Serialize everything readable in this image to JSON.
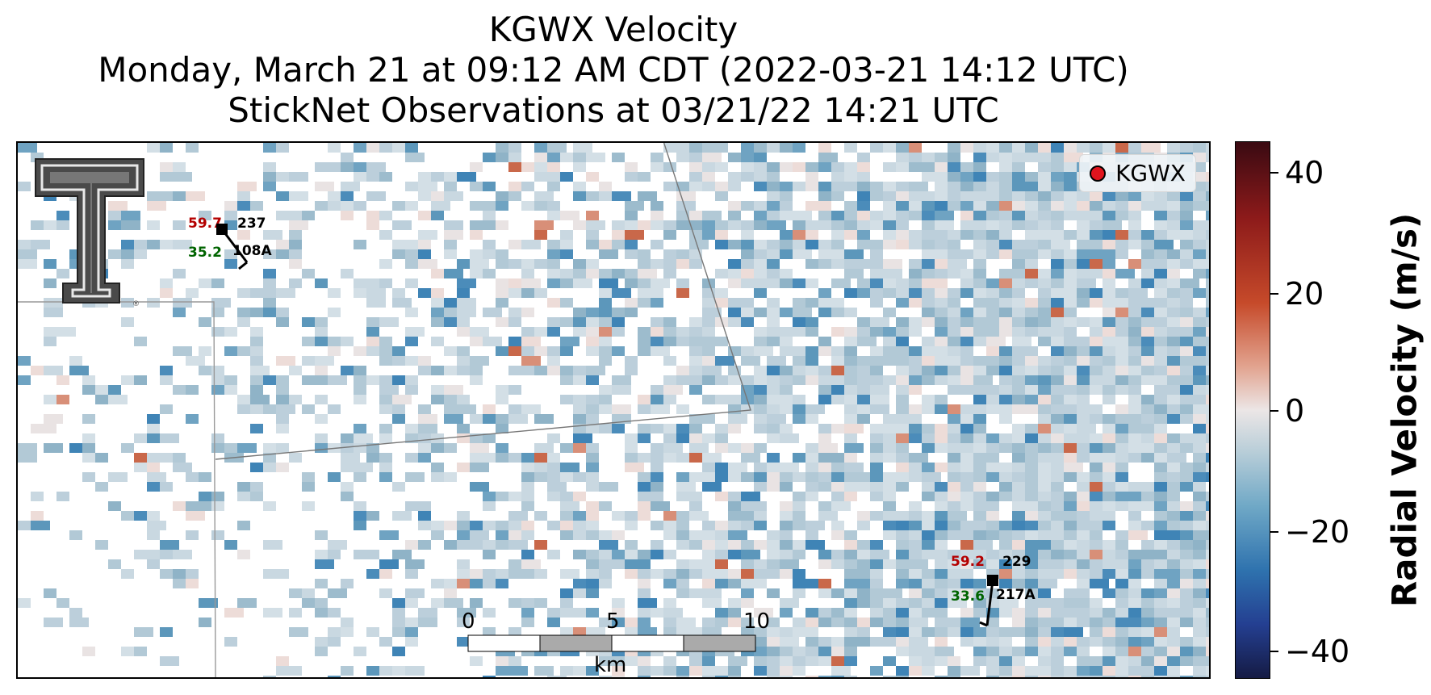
{
  "title": {
    "line1": "KGWX Velocity",
    "line2": "Monday, March 21 at 09:12 AM CDT (2022-03-21 14:12 UTC)",
    "line3": "StickNet Observations at 03/21/22 14:21 UTC"
  },
  "legend": {
    "label": "KGWX",
    "marker_color": "#e0141e"
  },
  "colorbar": {
    "label": "Radial Velocity (m/s)",
    "ticks": [
      "40",
      "20",
      "0",
      "−20",
      "−40"
    ],
    "range": [
      -45,
      45
    ],
    "colors": [
      "#151b44",
      "#2e72ae",
      "#b7cdd8",
      "#ece6e6",
      "#c64a2a",
      "#3a0a12"
    ]
  },
  "stations": [
    {
      "id": "108A",
      "temp": "59.7",
      "dew": "35.2",
      "dir": "237"
    },
    {
      "id": "217A",
      "temp": "59.2",
      "dew": "33.6",
      "dir": "229"
    }
  ],
  "scalebar": {
    "ticks": [
      "0",
      "5",
      "10"
    ],
    "unit": "km"
  },
  "logo": {
    "icon": "texas-tech-double-t-logo"
  }
}
